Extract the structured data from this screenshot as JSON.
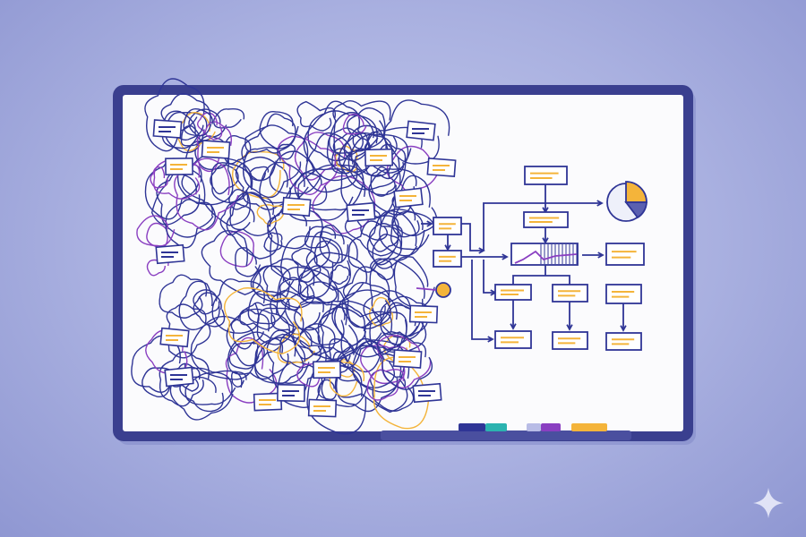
{
  "colors": {
    "frame": "#3a3f8f",
    "board": "#fbfbfd",
    "ink": "#2f3596",
    "accent_orange": "#f4b43a",
    "accent_purple": "#8a3fc1",
    "marker_teal": "#2bb3b0",
    "marker_lavender": "#b8bce6"
  },
  "icons": [
    "sparkle-icon",
    "pie-chart-icon",
    "line-chart-icon"
  ]
}
